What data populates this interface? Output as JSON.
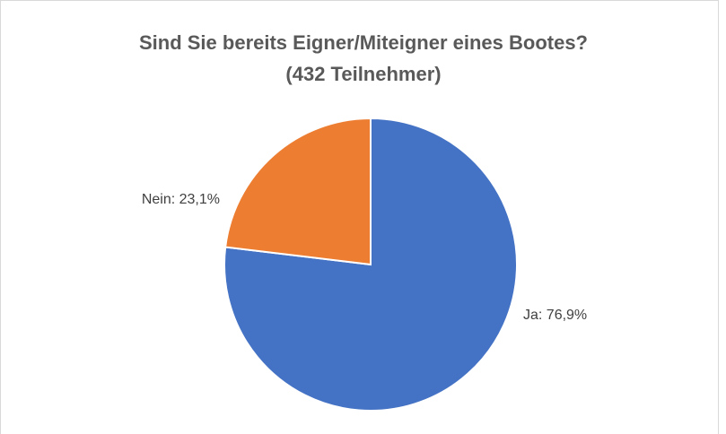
{
  "chart_data": {
    "type": "pie",
    "title": "Sind Sie bereits Eigner/Miteigner eines Bootes?",
    "subtitle": "(432 Teilnehmer)",
    "values": [
      76.9,
      23.1
    ],
    "value_labels": [
      "Ja: 76,9%",
      "Nein: 23,1%"
    ],
    "colors": [
      "#4472c4",
      "#ed7d31"
    ]
  }
}
